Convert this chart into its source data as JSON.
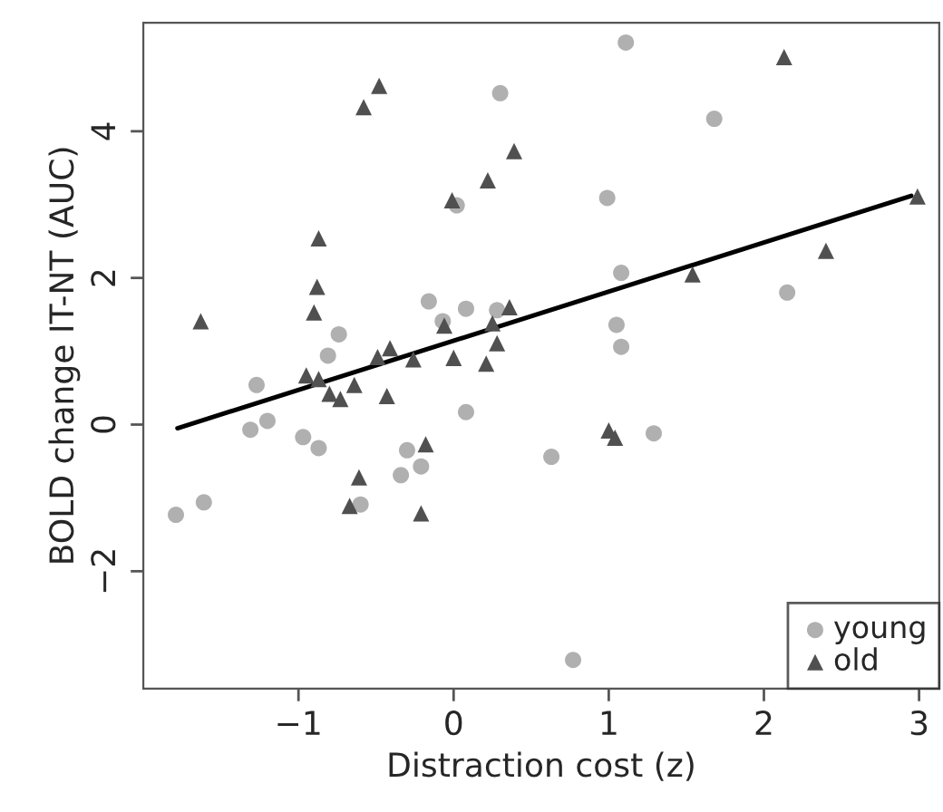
{
  "chart_data": {
    "type": "scatter",
    "xlabel": "Distraction cost (z)",
    "ylabel": "BOLD change IT-NT (AUC)",
    "xlim": [
      -2.0,
      3.13
    ],
    "ylim": [
      -3.6,
      5.48
    ],
    "xticks": [
      {
        "value": -1,
        "label": "−1"
      },
      0,
      1,
      2,
      3
    ],
    "yticks": [
      {
        "value": -2,
        "label": "−2"
      },
      0,
      2,
      4
    ],
    "grid": false,
    "legend": "bottom right",
    "series": [
      {
        "name": "young",
        "marker": "circle",
        "color": "#b0b0b0",
        "x": [
          -1.79,
          -1.61,
          -1.31,
          -1.27,
          -1.2,
          -0.97,
          -0.87,
          -0.81,
          -0.74,
          -0.6,
          -0.34,
          -0.3,
          -0.21,
          0.08,
          -0.16,
          -0.07,
          0.08,
          0.28,
          0.02,
          0.3,
          1.11,
          1.68,
          0.99,
          1.08,
          2.15,
          1.05,
          1.08,
          0.63,
          1.29,
          0.77
        ],
        "values": [
          -1.23,
          -1.06,
          -0.07,
          0.54,
          0.05,
          -0.17,
          -0.32,
          0.94,
          1.23,
          -1.09,
          -0.69,
          -0.35,
          -0.57,
          0.17,
          1.68,
          1.41,
          1.58,
          1.56,
          2.99,
          4.52,
          5.21,
          4.17,
          3.09,
          2.07,
          1.8,
          1.36,
          1.06,
          -0.44,
          -0.12,
          -3.21
        ]
      },
      {
        "name": "old",
        "marker": "triangle",
        "color": "#505050",
        "x": [
          -1.63,
          -0.87,
          -0.88,
          -0.9,
          -0.58,
          -0.48,
          -0.01,
          0.22,
          0.39,
          -0.06,
          0.25,
          0.36,
          0.28,
          -0.41,
          -0.49,
          -0.95,
          -0.87,
          -0.8,
          -0.73,
          -0.64,
          -0.26,
          0.0,
          0.21,
          -0.43,
          -0.18,
          -0.61,
          -0.67,
          -0.21,
          2.13,
          2.99,
          2.4,
          1.54,
          1.0,
          1.04
        ],
        "values": [
          1.41,
          2.54,
          1.88,
          1.53,
          4.33,
          4.62,
          3.06,
          3.33,
          3.73,
          1.35,
          1.38,
          1.6,
          1.11,
          1.04,
          0.92,
          0.67,
          0.62,
          0.42,
          0.35,
          0.54,
          0.89,
          0.91,
          0.83,
          0.39,
          -0.27,
          -0.72,
          -1.11,
          -1.21,
          5.01,
          3.11,
          2.37,
          2.05,
          -0.08,
          -0.18
        ]
      },
      {
        "type": "line",
        "marker": "none",
        "line_style": "solid",
        "color": "#000000",
        "x": [
          -1.78,
          2.95
        ],
        "values": [
          -0.05,
          3.12
        ]
      }
    ]
  }
}
